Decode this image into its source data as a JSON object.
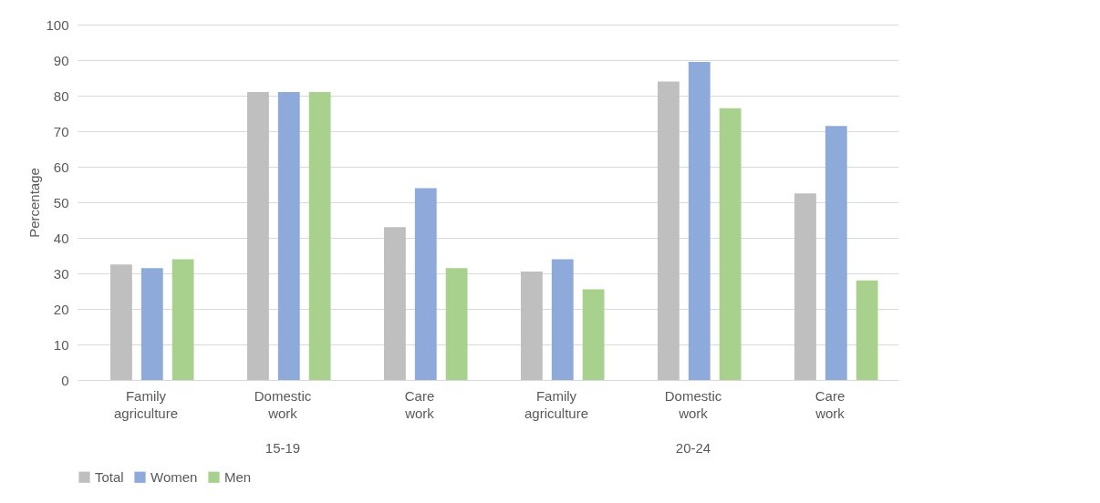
{
  "chart_data": {
    "type": "bar",
    "ylabel": "Percentage",
    "categories": [
      "Family agriculture",
      "Domestic work",
      "Care work",
      "Family agriculture",
      "Domestic work",
      "Care work"
    ],
    "annotations": [
      "15-19",
      "20-24"
    ],
    "series": [
      {
        "name": "Total",
        "color": "#bfbfbf",
        "values": [
          32.5,
          81,
          43,
          30.5,
          84,
          52.5
        ]
      },
      {
        "name": "Women",
        "color": "#8eaadb",
        "values": [
          31.5,
          81,
          54,
          34,
          89.5,
          71.5
        ]
      },
      {
        "name": "Men",
        "color": "#a9d18e",
        "values": [
          34,
          81,
          31.5,
          25.5,
          76.5,
          28
        ]
      }
    ],
    "ylim": [
      0,
      100
    ],
    "yticks": [
      0,
      10,
      20,
      30,
      40,
      50,
      60,
      70,
      80,
      90,
      100
    ],
    "grid": "y",
    "legend": "bottom"
  }
}
